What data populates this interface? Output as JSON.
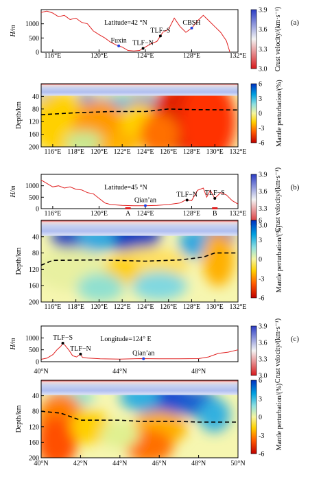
{
  "colors": {
    "topo_line": "#e02020",
    "moho_line": "#000000",
    "crust_scale": [
      "#d7191c",
      "#f4f4f4",
      "#2b3cc4"
    ],
    "mantle_scale": [
      "#c00000",
      "#ff5a00",
      "#ffd000",
      "#f5f5a0",
      "#8fe0e0",
      "#00a0e0",
      "#0030c0"
    ]
  },
  "colorbars": {
    "crust": {
      "label": "Crust velocity/(km·s⁻¹)",
      "ticks": [
        "3.9",
        "3.6",
        "3.3",
        "3.0"
      ],
      "range": [
        3.0,
        3.9
      ]
    },
    "mantle": {
      "label": "Mantle perturbation/(%)",
      "ticks": [
        "6",
        "3",
        "0",
        "-3",
        "-6"
      ],
      "range": [
        -6,
        6
      ]
    }
  },
  "panels": [
    {
      "id": "a",
      "panel_label": "(a)",
      "profile_title": "Latitude=42 °N",
      "xaxis": "lon",
      "xrange": [
        115,
        132
      ],
      "xticks": [
        "116°E",
        "118°E",
        "120°E",
        "122°E",
        "124°E",
        "126°E",
        "128°E",
        "130°E",
        "132°E"
      ],
      "top_xticks_values": [
        116,
        120,
        124,
        128,
        132
      ],
      "top_xticks": [
        "116°E",
        "120°E",
        "124°E",
        "128°E",
        "132°E"
      ],
      "topo_ylabel": "H/m",
      "topo_yticks": [
        "1000",
        "500",
        "0"
      ],
      "depth_ylabel": "Depth/km",
      "depth_yticks": [
        "40",
        "80",
        "120",
        "160",
        "200"
      ],
      "features": [
        {
          "name": "Fuxin",
          "x": 121.7
        },
        {
          "name": "TLF−N",
          "x": 123.8
        },
        {
          "name": "TLF−S",
          "x": 125.3
        },
        {
          "name": "CBSH",
          "x": 128.0
        }
      ],
      "topo": [
        [
          115,
          1400
        ],
        [
          115.5,
          1450
        ],
        [
          116,
          1380
        ],
        [
          116.5,
          1250
        ],
        [
          117,
          1300
        ],
        [
          117.5,
          1150
        ],
        [
          118,
          1200
        ],
        [
          118.5,
          1050
        ],
        [
          119,
          1000
        ],
        [
          119.5,
          750
        ],
        [
          120,
          620
        ],
        [
          120.5,
          500
        ],
        [
          121,
          350
        ],
        [
          121.5,
          250
        ],
        [
          122,
          180
        ],
        [
          122.5,
          60
        ],
        [
          123,
          40
        ],
        [
          123.5,
          60
        ],
        [
          124,
          180
        ],
        [
          124.5,
          300
        ],
        [
          125,
          380
        ],
        [
          125.5,
          700
        ],
        [
          126,
          800
        ],
        [
          126.5,
          1200
        ],
        [
          127,
          900
        ],
        [
          127.5,
          700
        ],
        [
          128,
          850
        ],
        [
          128.5,
          1100
        ],
        [
          129,
          1300
        ],
        [
          129.5,
          1100
        ],
        [
          130,
          900
        ],
        [
          130.5,
          700
        ],
        [
          131,
          400
        ],
        [
          131.3,
          0
        ]
      ],
      "moho": [
        [
          115,
          98
        ],
        [
          118,
          92
        ],
        [
          121,
          88
        ],
        [
          124,
          88
        ],
        [
          126,
          80
        ],
        [
          128,
          82
        ],
        [
          132,
          83
        ]
      ]
    },
    {
      "id": "b",
      "panel_label": "(b)",
      "profile_title": "Latitude=45 °N",
      "xaxis": "lon",
      "xrange": [
        115,
        132
      ],
      "xticks": [
        "116°E",
        "118°E",
        "120°E",
        "122°E",
        "124°E",
        "126°E",
        "128°E",
        "130°E",
        "132°E"
      ],
      "top_xticks_values": [
        116,
        120,
        124,
        128,
        132
      ],
      "top_xticks": [
        "116°E",
        "120°E",
        "124°E",
        "128°E",
        "132°E"
      ],
      "topo_ylabel": "H/m",
      "topo_yticks": [
        "1000",
        "500",
        "0"
      ],
      "depth_ylabel": "Depth/km",
      "depth_yticks": [
        "40",
        "80",
        "120",
        "160",
        "200"
      ],
      "features": [
        {
          "name": "Qian’an",
          "x": 124.0
        },
        {
          "name": "TLF−N",
          "x": 127.6
        },
        {
          "name": "TLF−S",
          "x": 130.0
        }
      ],
      "markers": [
        {
          "label": "A",
          "x": 122.5
        },
        {
          "label": "B",
          "x": 130.0
        }
      ],
      "topo": [
        [
          115,
          1250
        ],
        [
          115.5,
          1100
        ],
        [
          116,
          950
        ],
        [
          116.5,
          1000
        ],
        [
          117,
          900
        ],
        [
          117.5,
          950
        ],
        [
          118,
          850
        ],
        [
          118.5,
          820
        ],
        [
          119,
          700
        ],
        [
          119.5,
          650
        ],
        [
          120,
          450
        ],
        [
          120.5,
          250
        ],
        [
          121,
          180
        ],
        [
          122,
          140
        ],
        [
          123,
          130
        ],
        [
          124,
          130
        ],
        [
          125,
          140
        ],
        [
          126,
          180
        ],
        [
          127,
          250
        ],
        [
          127.5,
          380
        ],
        [
          128,
          350
        ],
        [
          128.5,
          800
        ],
        [
          129,
          900
        ],
        [
          129.3,
          500
        ],
        [
          129.6,
          800
        ],
        [
          130,
          450
        ],
        [
          130.5,
          700
        ],
        [
          131,
          600
        ],
        [
          131.5,
          350
        ],
        [
          132,
          200
        ]
      ],
      "moho": [
        [
          115,
          110
        ],
        [
          116,
          98
        ],
        [
          120,
          97
        ],
        [
          124,
          100
        ],
        [
          127,
          97
        ],
        [
          129,
          90
        ],
        [
          130,
          80
        ],
        [
          132,
          80
        ]
      ]
    },
    {
      "id": "c",
      "panel_label": "(c)",
      "profile_title": "Longitude=124° E",
      "xaxis": "lat",
      "xrange": [
        40,
        50
      ],
      "xticks": [
        "40°N",
        "42°N",
        "44°N",
        "46°N",
        "48°N",
        "50°N"
      ],
      "top_xticks_values": [
        40,
        44,
        48
      ],
      "top_xticks": [
        "40°N",
        "44°N",
        "48°N"
      ],
      "topo_ylabel": "H/m",
      "topo_yticks": [
        "1000",
        "500",
        "0"
      ],
      "depth_ylabel": "Depth/km",
      "depth_yticks": [
        "40",
        "80",
        "120",
        "160",
        "200"
      ],
      "features": [
        {
          "name": "TLF−S",
          "x": 41.1
        },
        {
          "name": "TLF−N",
          "x": 42.0
        },
        {
          "name": "Qian’an",
          "x": 45.2
        }
      ],
      "topo": [
        [
          40,
          100
        ],
        [
          40.3,
          150
        ],
        [
          40.6,
          300
        ],
        [
          40.8,
          500
        ],
        [
          41,
          650
        ],
        [
          41.1,
          780
        ],
        [
          41.2,
          700
        ],
        [
          41.4,
          500
        ],
        [
          41.6,
          250
        ],
        [
          41.8,
          200
        ],
        [
          42,
          320
        ],
        [
          42.1,
          180
        ],
        [
          42.4,
          150
        ],
        [
          43,
          120
        ],
        [
          44,
          110
        ],
        [
          45,
          130
        ],
        [
          46,
          120
        ],
        [
          47,
          120
        ],
        [
          48,
          130
        ],
        [
          48.5,
          200
        ],
        [
          49,
          350
        ],
        [
          49.5,
          400
        ],
        [
          50,
          500
        ]
      ],
      "moho": [
        [
          40,
          80
        ],
        [
          41,
          85
        ],
        [
          42,
          103
        ],
        [
          44,
          103
        ],
        [
          45,
          106
        ],
        [
          47,
          106
        ],
        [
          48,
          108
        ],
        [
          50,
          108
        ]
      ]
    }
  ]
}
